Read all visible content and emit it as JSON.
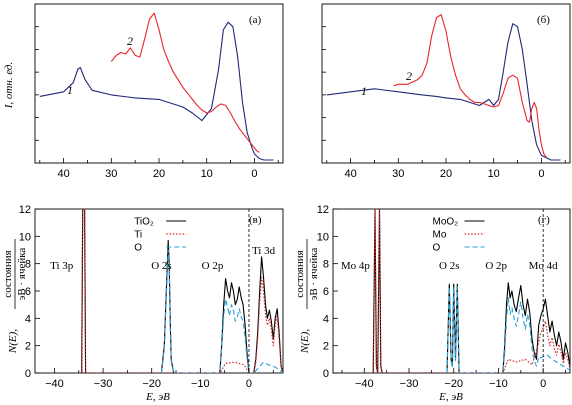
{
  "colors": {
    "blue": "#1f2a78",
    "red": "#e8272b",
    "total": "#000000",
    "metal": "#d42a2a",
    "oxygen": "#2aa0d8"
  },
  "chart_data": [
    {
      "id": "a",
      "type": "line",
      "panel_label": "(а)",
      "ylabel": "I, отн. ед.",
      "xlabel": "",
      "xlim": [
        46,
        -6
      ],
      "xticks": [
        40,
        30,
        20,
        10,
        0
      ],
      "yticks_labeled": false,
      "curve_labels": [
        "1",
        "2"
      ],
      "series": [
        {
          "color_key": "blue",
          "x": [
            45,
            40,
            38,
            37,
            36.5,
            35.5,
            34,
            30,
            25,
            20,
            15,
            13,
            11,
            9,
            7.5,
            6.5,
            5.5,
            4.5,
            3.5,
            2.5,
            1.5,
            0.5,
            0,
            -1,
            -2,
            -4
          ],
          "y": [
            0.44,
            0.47,
            0.53,
            0.62,
            0.63,
            0.55,
            0.48,
            0.45,
            0.43,
            0.42,
            0.37,
            0.33,
            0.28,
            0.36,
            0.62,
            0.88,
            0.93,
            0.9,
            0.7,
            0.4,
            0.2,
            0.1,
            0.06,
            0.03,
            0.02,
            0.02
          ]
        },
        {
          "color_key": "red",
          "x": [
            30,
            29,
            28,
            27,
            26,
            25,
            24,
            23,
            22,
            21,
            20,
            19,
            18,
            17,
            16,
            15,
            14,
            13,
            12,
            11,
            10,
            9,
            8,
            7,
            6,
            5,
            4,
            3,
            2,
            1,
            0,
            -0.5,
            -1
          ],
          "y": [
            0.67,
            0.71,
            0.73,
            0.72,
            0.76,
            0.71,
            0.7,
            0.82,
            0.95,
            0.99,
            0.88,
            0.75,
            0.67,
            0.6,
            0.55,
            0.5,
            0.46,
            0.42,
            0.38,
            0.35,
            0.33,
            0.34,
            0.37,
            0.39,
            0.38,
            0.33,
            0.27,
            0.22,
            0.18,
            0.14,
            0.1,
            0.08,
            0.07
          ]
        }
      ]
    },
    {
      "id": "b",
      "type": "line",
      "panel_label": "(б)",
      "ylabel": "",
      "xlabel": "",
      "xlim": [
        46,
        -6
      ],
      "xticks": [
        40,
        30,
        20,
        10,
        0
      ],
      "yticks_labeled": false,
      "curve_labels": [
        "1",
        "2"
      ],
      "series": [
        {
          "color_key": "blue",
          "x": [
            45,
            40,
            35,
            30,
            25,
            22,
            20,
            17,
            15,
            13,
            11,
            10,
            9,
            8,
            7,
            6,
            5,
            4,
            3,
            2,
            1,
            0,
            -2,
            -4
          ],
          "y": [
            0.45,
            0.47,
            0.49,
            0.47,
            0.45,
            0.44,
            0.43,
            0.42,
            0.4,
            0.38,
            0.42,
            0.38,
            0.42,
            0.6,
            0.8,
            0.92,
            0.9,
            0.75,
            0.52,
            0.28,
            0.12,
            0.05,
            0.02,
            0.02
          ]
        },
        {
          "color_key": "red",
          "x": [
            31,
            30,
            28,
            26,
            25,
            24,
            23,
            22,
            21,
            20,
            19,
            18,
            17,
            16,
            15,
            14,
            13,
            12,
            11,
            10,
            9,
            8,
            7,
            6,
            5,
            4,
            3,
            2.5,
            2,
            1.5,
            1,
            0.5,
            0,
            -0.5,
            -1
          ],
          "y": [
            0.51,
            0.52,
            0.52,
            0.55,
            0.58,
            0.66,
            0.84,
            0.96,
            0.98,
            0.87,
            0.7,
            0.58,
            0.49,
            0.45,
            0.42,
            0.4,
            0.4,
            0.39,
            0.38,
            0.37,
            0.38,
            0.46,
            0.56,
            0.58,
            0.56,
            0.4,
            0.28,
            0.27,
            0.36,
            0.4,
            0.36,
            0.22,
            0.12,
            0.06,
            0.04
          ]
        }
      ]
    },
    {
      "id": "v",
      "type": "line",
      "panel_label": "(в)",
      "ylabel_main": "N(E),",
      "ylabel_num": "состояния",
      "ylabel_den": "эВ · ячейка",
      "xlabel": "E, эВ",
      "xlim": [
        -44,
        7
      ],
      "ylim": [
        0,
        12
      ],
      "xticks": [
        -40,
        -30,
        -20,
        -10,
        0
      ],
      "yticks": [
        0,
        2,
        4,
        6,
        8,
        10,
        12
      ],
      "fermi_x": 0,
      "legend": [
        "TiO₂",
        "Ti",
        "O"
      ],
      "annotations": [
        {
          "text": "Ti 3p",
          "x": -38.5,
          "y": 7.6
        },
        {
          "text": "O 2s",
          "x": -18,
          "y": 7.6
        },
        {
          "text": "O 2p",
          "x": -7.5,
          "y": 7.6
        },
        {
          "text": "Ti 3d",
          "x": 3,
          "y": 8.7
        }
      ],
      "series": [
        {
          "color_key": "total",
          "style": "solid",
          "x": [
            -35,
            -34.4,
            -34.2,
            -33.8,
            -33.6,
            -33,
            -18,
            -17.4,
            -17,
            -16.6,
            -16.4,
            -16.2,
            -16,
            -15.5,
            -6,
            -5.6,
            -5.2,
            -4.8,
            -4.4,
            -4,
            -3.6,
            -3.2,
            -2.8,
            -2.4,
            -2,
            -1.6,
            -1.2,
            -0.8,
            -0.4,
            0,
            0.5,
            1,
            1.4,
            1.8,
            2.2,
            2.6,
            3,
            3.4,
            3.8,
            4.2,
            4.6,
            5,
            5.4,
            5.8,
            6.2,
            6.6,
            7
          ],
          "y": [
            0,
            0,
            12,
            12,
            0,
            0,
            0,
            2,
            6,
            9.7,
            8,
            4,
            1,
            0,
            0,
            2,
            5,
            6.9,
            6,
            5.5,
            6.6,
            6,
            5,
            5.4,
            6.3,
            5.5,
            5,
            3.5,
            1.5,
            0,
            0,
            0,
            1,
            3,
            6,
            8.5,
            7,
            5,
            4,
            4.6,
            3.8,
            2.5,
            4,
            4.7,
            3,
            0.5,
            0
          ]
        },
        {
          "color_key": "metal",
          "style": "dotted",
          "x": [
            -35,
            -34.4,
            -34.2,
            -33.8,
            -33.6,
            -33,
            -6,
            -4.8,
            -3,
            -1,
            0,
            1,
            1.4,
            1.8,
            2.2,
            2.6,
            3,
            3.4,
            3.8,
            4.2,
            4.6,
            5,
            5.4,
            5.8,
            6.2,
            6.6,
            7
          ],
          "y": [
            0,
            0,
            12,
            12,
            0,
            0,
            0,
            0.7,
            0.8,
            0.6,
            0,
            0,
            0.8,
            2.5,
            5.2,
            7,
            6,
            4.2,
            3.5,
            4,
            3.2,
            2,
            3.5,
            4.2,
            2.5,
            0.5,
            0
          ]
        },
        {
          "color_key": "oxygen",
          "style": "dashed",
          "x": [
            -18,
            -17.4,
            -17,
            -16.6,
            -16.4,
            -16.2,
            -16,
            -15.5,
            -6,
            -5.6,
            -5.2,
            -4.8,
            -4.4,
            -4,
            -3.6,
            -3.2,
            -2.8,
            -2.4,
            -2,
            -1.6,
            -1.2,
            -0.8,
            -0.4,
            0,
            1,
            2,
            3,
            4,
            5,
            6,
            7
          ],
          "y": [
            0,
            1.8,
            5.6,
            9,
            7.5,
            3.6,
            0.9,
            0,
            0,
            1.8,
            4.2,
            5.4,
            4.8,
            4.2,
            5,
            4.6,
            3.8,
            4.1,
            4.7,
            4.1,
            3.8,
            2.6,
            1.1,
            0,
            0,
            0.4,
            0.8,
            0.6,
            0.5,
            0.3,
            0
          ]
        }
      ]
    },
    {
      "id": "g",
      "type": "line",
      "panel_label": "(г)",
      "ylabel_main": "N(E),",
      "ylabel_num": "состояния",
      "ylabel_den": "эВ · ячейка",
      "xlabel": "E, эВ",
      "xlim": [
        -47,
        6
      ],
      "ylim": [
        0,
        12
      ],
      "xticks": [
        -40,
        -30,
        -20,
        -10,
        0
      ],
      "yticks": [
        0,
        2,
        4,
        6,
        8,
        10,
        12
      ],
      "fermi_x": 0,
      "legend": [
        "MoO₂",
        "Mo",
        "O"
      ],
      "annotations": [
        {
          "text": "Mo 4p",
          "x": -42,
          "y": 7.6
        },
        {
          "text": "O 2s",
          "x": -21,
          "y": 7.6
        },
        {
          "text": "O 2p",
          "x": -10.5,
          "y": 7.6
        },
        {
          "text": "Mo 4d",
          "x": 0,
          "y": 7.6
        }
      ],
      "series": [
        {
          "color_key": "total",
          "style": "solid",
          "x": [
            -38.5,
            -38,
            -37.6,
            -37.3,
            -37,
            -36.6,
            -36.3,
            -36,
            -21.5,
            -21,
            -20.6,
            -20.3,
            -20,
            -19.6,
            -19.2,
            -18.8,
            -9,
            -8.6,
            -8.2,
            -7.8,
            -7.4,
            -7,
            -6.5,
            -6,
            -5.5,
            -5,
            -4.5,
            -4,
            -3.5,
            -3,
            -2.5,
            -2,
            -1.5,
            -1,
            -0.5,
            0,
            0.5,
            1,
            1.5,
            2,
            2.5,
            3,
            3.5,
            4,
            4.5,
            5,
            5.5,
            6
          ],
          "y": [
            0,
            0,
            12,
            0.5,
            0,
            12,
            0.5,
            0,
            0,
            6.5,
            1,
            0.5,
            6.5,
            1,
            6.5,
            0,
            0,
            2,
            5,
            6.6,
            5.5,
            6,
            5,
            4.5,
            5.5,
            6.4,
            5,
            4.2,
            5.4,
            4.4,
            2.5,
            1.5,
            1,
            3.5,
            4.2,
            4.7,
            5.4,
            4.2,
            3,
            3.8,
            2.8,
            2,
            3,
            2.2,
            1,
            2.2,
            1.5,
            0.5
          ]
        },
        {
          "color_key": "metal",
          "style": "dotted",
          "x": [
            -38.5,
            -38,
            -37.6,
            -37.3,
            -37,
            -36.6,
            -36.3,
            -36,
            -9,
            -7.8,
            -6,
            -4,
            -2.5,
            -1,
            -0.5,
            0,
            0.5,
            1,
            1.5,
            2,
            2.5,
            3,
            3.5,
            4,
            4.5,
            5,
            5.5,
            6
          ],
          "y": [
            0,
            0,
            12,
            0.5,
            0,
            12,
            0.5,
            0,
            0,
            1,
            0.8,
            1,
            0.6,
            2.2,
            3,
            3.3,
            3.8,
            2.8,
            2,
            2.6,
            1.8,
            1.3,
            2.1,
            1.5,
            0.7,
            1.5,
            1,
            0.3
          ]
        },
        {
          "color_key": "oxygen",
          "style": "dashed",
          "x": [
            -21.5,
            -21,
            -20.6,
            -20.3,
            -20,
            -19.6,
            -19.2,
            -18.8,
            -9,
            -8.6,
            -8.2,
            -7.8,
            -7.4,
            -7,
            -6.5,
            -6,
            -5.5,
            -5,
            -4.5,
            -4,
            -3.5,
            -3,
            -2.5,
            -2,
            -1.5,
            -1,
            -0.5,
            0,
            1,
            2,
            3,
            4,
            5,
            6
          ],
          "y": [
            0,
            6.3,
            0.9,
            0.4,
            6.3,
            0.9,
            6.3,
            0,
            0,
            1.5,
            4,
            5.5,
            4.3,
            4.8,
            4,
            3.4,
            4.3,
            5.2,
            4,
            3.2,
            4.3,
            3.5,
            1.8,
            0.9,
            0.5,
            1.2,
            1.1,
            1.2,
            1.3,
            1,
            0.8,
            0.6,
            0.4,
            0.2
          ]
        }
      ]
    }
  ]
}
